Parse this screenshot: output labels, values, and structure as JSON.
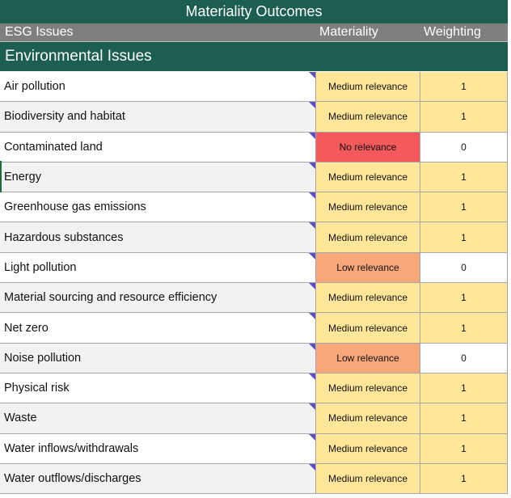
{
  "title": "Materiality Outcomes",
  "headers": {
    "issue": "ESG Issues",
    "materiality": "Materiality",
    "weighting": "Weighting"
  },
  "section": "Environmental Issues",
  "colors": {
    "dark_green": "#1c5e50",
    "medium_relevance": "#ffe699",
    "low_relevance": "#f8a77a",
    "no_relevance": "#f4595c",
    "comment_marker": "#5b4fc9"
  },
  "rows": [
    {
      "issue": "Air pollution",
      "materiality": "Medium relevance",
      "level": "medium",
      "weighting": "1"
    },
    {
      "issue": "Biodiversity and habitat",
      "materiality": "Medium relevance",
      "level": "medium",
      "weighting": "1"
    },
    {
      "issue": "Contaminated land",
      "materiality": "No relevance",
      "level": "none",
      "weighting": "0"
    },
    {
      "issue": "Energy",
      "materiality": "Medium relevance",
      "level": "medium",
      "weighting": "1"
    },
    {
      "issue": "Greenhouse gas emissions",
      "materiality": "Medium relevance",
      "level": "medium",
      "weighting": "1"
    },
    {
      "issue": "Hazardous substances",
      "materiality": "Medium relevance",
      "level": "medium",
      "weighting": "1"
    },
    {
      "issue": "Light pollution",
      "materiality": "Low relevance",
      "level": "low",
      "weighting": "0"
    },
    {
      "issue": "Material sourcing and resource efficiency",
      "materiality": "Medium relevance",
      "level": "medium",
      "weighting": "1"
    },
    {
      "issue": "Net zero",
      "materiality": "Medium relevance",
      "level": "medium",
      "weighting": "1"
    },
    {
      "issue": "Noise pollution",
      "materiality": "Low relevance",
      "level": "low",
      "weighting": "0"
    },
    {
      "issue": "Physical risk",
      "materiality": "Medium relevance",
      "level": "medium",
      "weighting": "1"
    },
    {
      "issue": "Waste",
      "materiality": "Medium relevance",
      "level": "medium",
      "weighting": "1"
    },
    {
      "issue": "Water inflows/withdrawals",
      "materiality": "Medium relevance",
      "level": "medium",
      "weighting": "1"
    },
    {
      "issue": "Water outflows/discharges",
      "materiality": "Medium relevance",
      "level": "medium",
      "weighting": "1"
    }
  ]
}
